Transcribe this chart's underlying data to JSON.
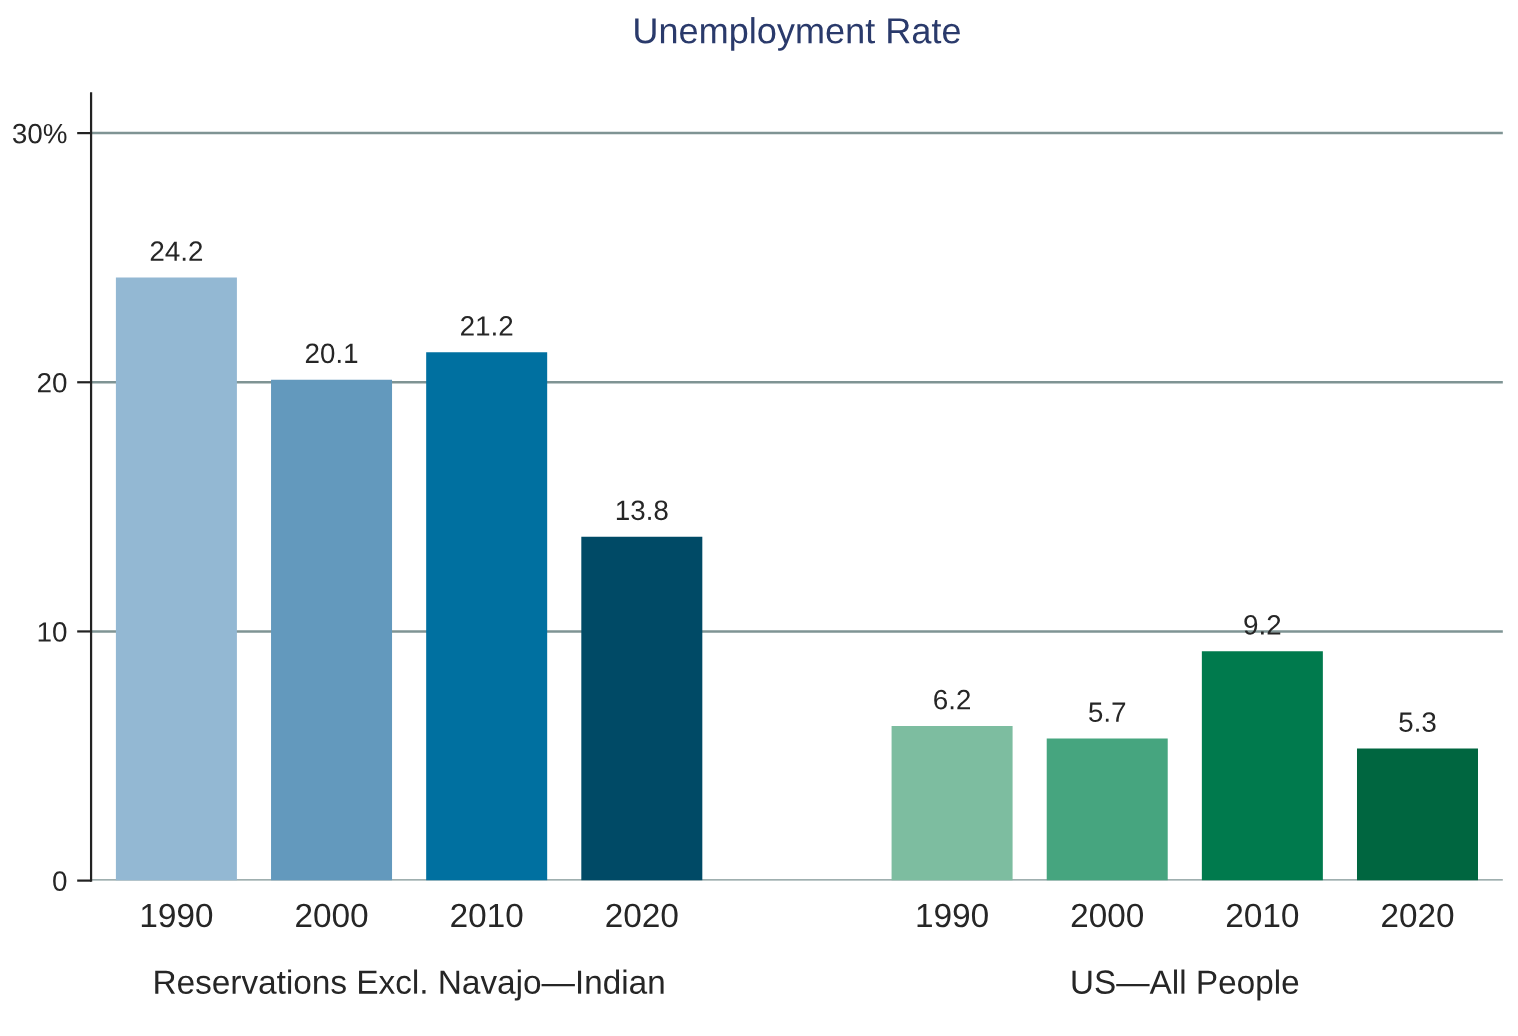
{
  "chart_data": {
    "type": "bar",
    "title": "Unemployment Rate",
    "categories": [
      "1990",
      "2000",
      "2010",
      "2020",
      null,
      "1990",
      "2000",
      "2010",
      "2020"
    ],
    "values": [
      24.2,
      20.1,
      21.2,
      13.8,
      null,
      6.2,
      5.7,
      9.2,
      5.3
    ],
    "colors": [
      "#93b8d3",
      "#6399bd",
      "#0070a0",
      "#004a66",
      "#ffffff",
      "#7dbda0",
      "#46a57f",
      "#007a4d",
      "#006640"
    ],
    "ylim": [
      0,
      31.6
    ],
    "yticks": [
      0,
      10,
      20,
      {
        "value": 30,
        "label": "30%"
      }
    ],
    "grid": "y",
    "data_labels": true,
    "annotations": [
      "Reservations Excl. Navajo—Indian",
      "US—All People"
    ]
  }
}
